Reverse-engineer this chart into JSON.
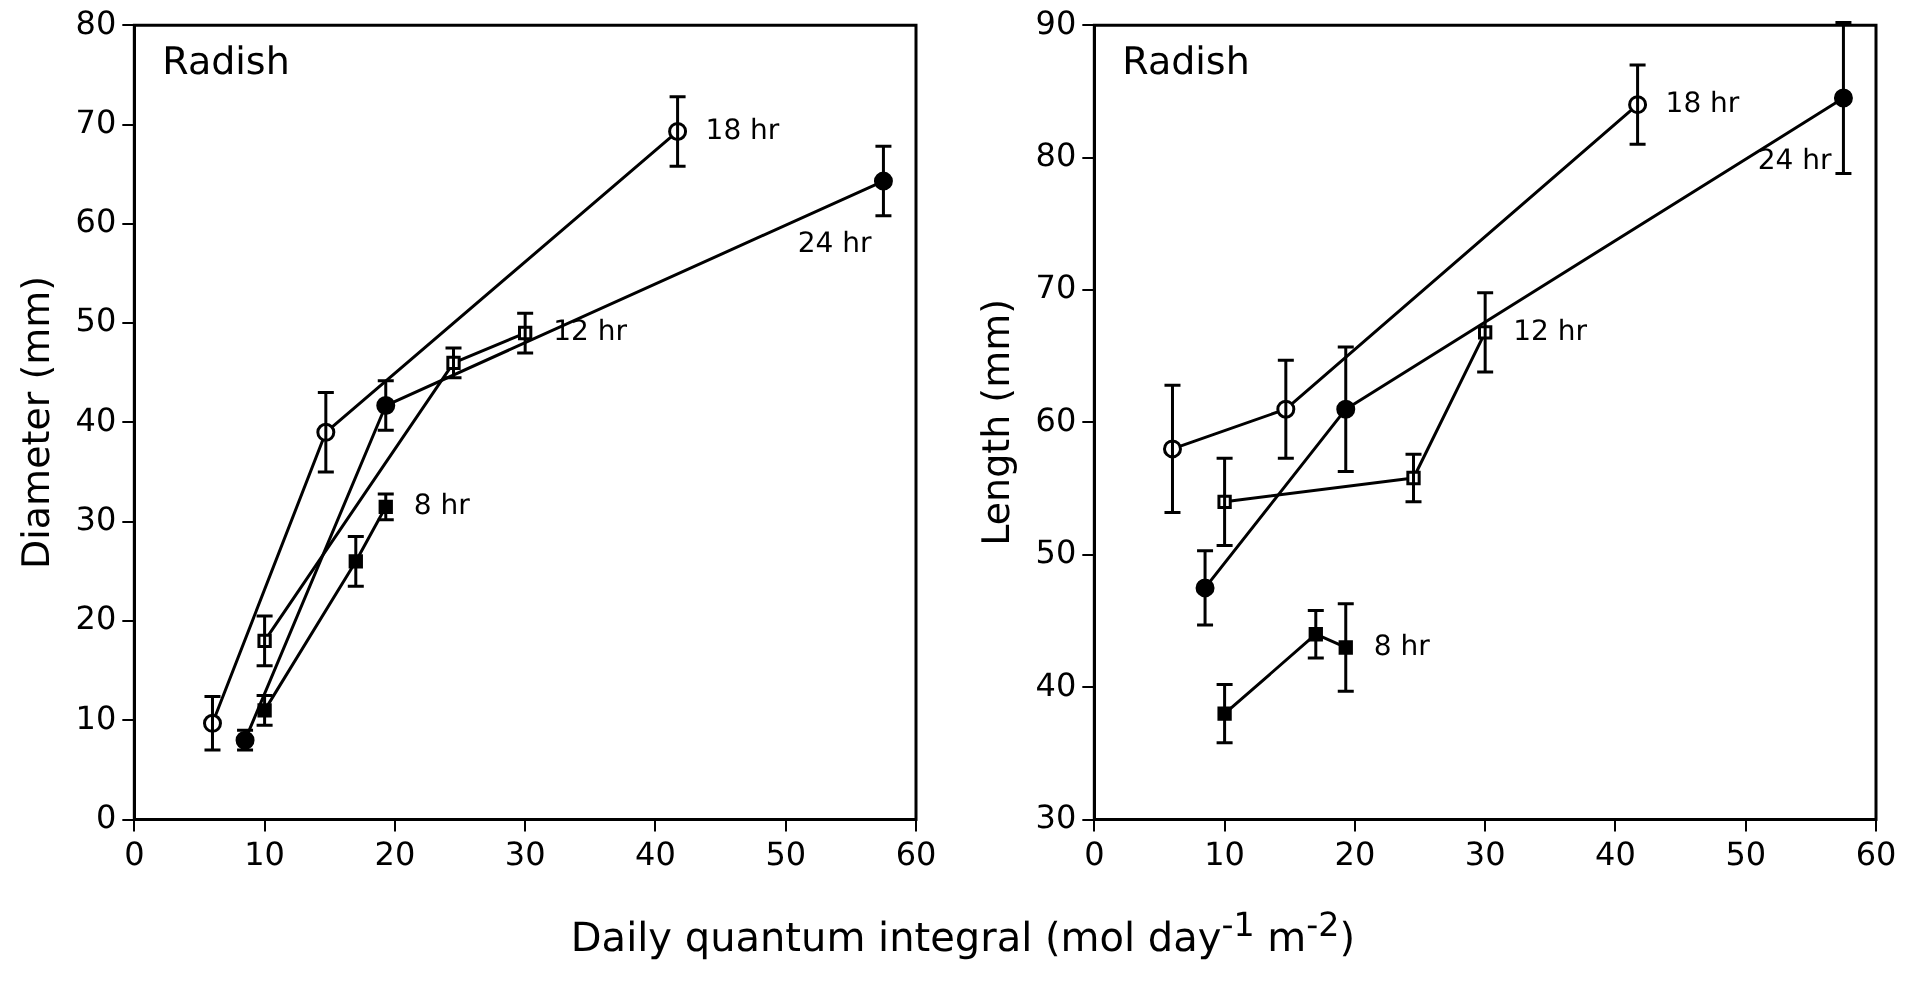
{
  "chart_data": [
    {
      "type": "line",
      "title": "Radish",
      "ylabel": "Diameter (mm)",
      "xlabel": "Daily quantum integral (mol day$^{-1}$ m$^{-2}$)",
      "xlim": [
        0,
        60
      ],
      "xticks": [
        0,
        10,
        20,
        30,
        40,
        50,
        60
      ],
      "ylim": [
        0,
        80
      ],
      "yticks": [
        0,
        10,
        20,
        30,
        40,
        50,
        60,
        70,
        80
      ],
      "grid": false,
      "legend": false,
      "line_style": "solid",
      "series": [
        {
          "name": "18 hr",
          "color": "#000000",
          "marker": "circle",
          "x": [
            6,
            14.7,
            41.7
          ],
          "values": [
            9.7,
            39,
            69.3
          ],
          "errors": [
            2.7,
            4,
            3.5
          ]
        },
        {
          "name": "24 hr",
          "color": "#000000",
          "marker": "circle",
          "x": [
            8.5,
            19.3,
            57.5
          ],
          "values": [
            8,
            41.7,
            64.3
          ],
          "errors": [
            1,
            2.5,
            3.5
          ]
        },
        {
          "name": "12 hr",
          "color": "#000000",
          "marker": "square",
          "x": [
            10,
            24.5,
            30
          ],
          "values": [
            18,
            46,
            49
          ],
          "errors": [
            2.5,
            1.5,
            2
          ]
        },
        {
          "name": "8 hr",
          "color": "#000000",
          "marker": "square",
          "x": [
            10,
            17,
            19.3
          ],
          "values": [
            11,
            26,
            31.5
          ],
          "errors": [
            1.5,
            2.5,
            1.3
          ]
        }
      ]
    },
    {
      "type": "line",
      "title": "Radish",
      "ylabel": "Length (mm)",
      "xlim": [
        0,
        60
      ],
      "xticks": [
        0,
        10,
        20,
        30,
        40,
        50,
        60
      ],
      "ylim": [
        30,
        90
      ],
      "yticks": [
        30,
        40,
        50,
        60,
        70,
        80,
        90
      ],
      "grid": false,
      "legend": false,
      "line_style": "solid",
      "series": [
        {
          "name": "18 hr",
          "color": "#000000",
          "marker": "circle",
          "x": [
            6,
            14.7,
            41.7
          ],
          "values": [
            58,
            61,
            84
          ],
          "errors": [
            4.8,
            3.7,
            3
          ]
        },
        {
          "name": "24 hr",
          "color": "#000000",
          "marker": "circle",
          "x": [
            8.5,
            19.3,
            57.5
          ],
          "values": [
            47.5,
            61,
            84.5
          ],
          "errors": [
            2.8,
            4.7,
            5.7
          ]
        },
        {
          "name": "12 hr",
          "color": "#000000",
          "marker": "square",
          "x": [
            10,
            24.5,
            30
          ],
          "values": [
            54,
            55.8,
            66.8
          ],
          "errors": [
            3.3,
            1.8,
            3
          ]
        },
        {
          "name": "8 hr",
          "color": "#000000",
          "marker": "square",
          "x": [
            10,
            17,
            19.3
          ],
          "values": [
            38,
            44,
            43
          ],
          "errors": [
            2.2,
            1.8,
            3.3
          ]
        }
      ]
    }
  ]
}
